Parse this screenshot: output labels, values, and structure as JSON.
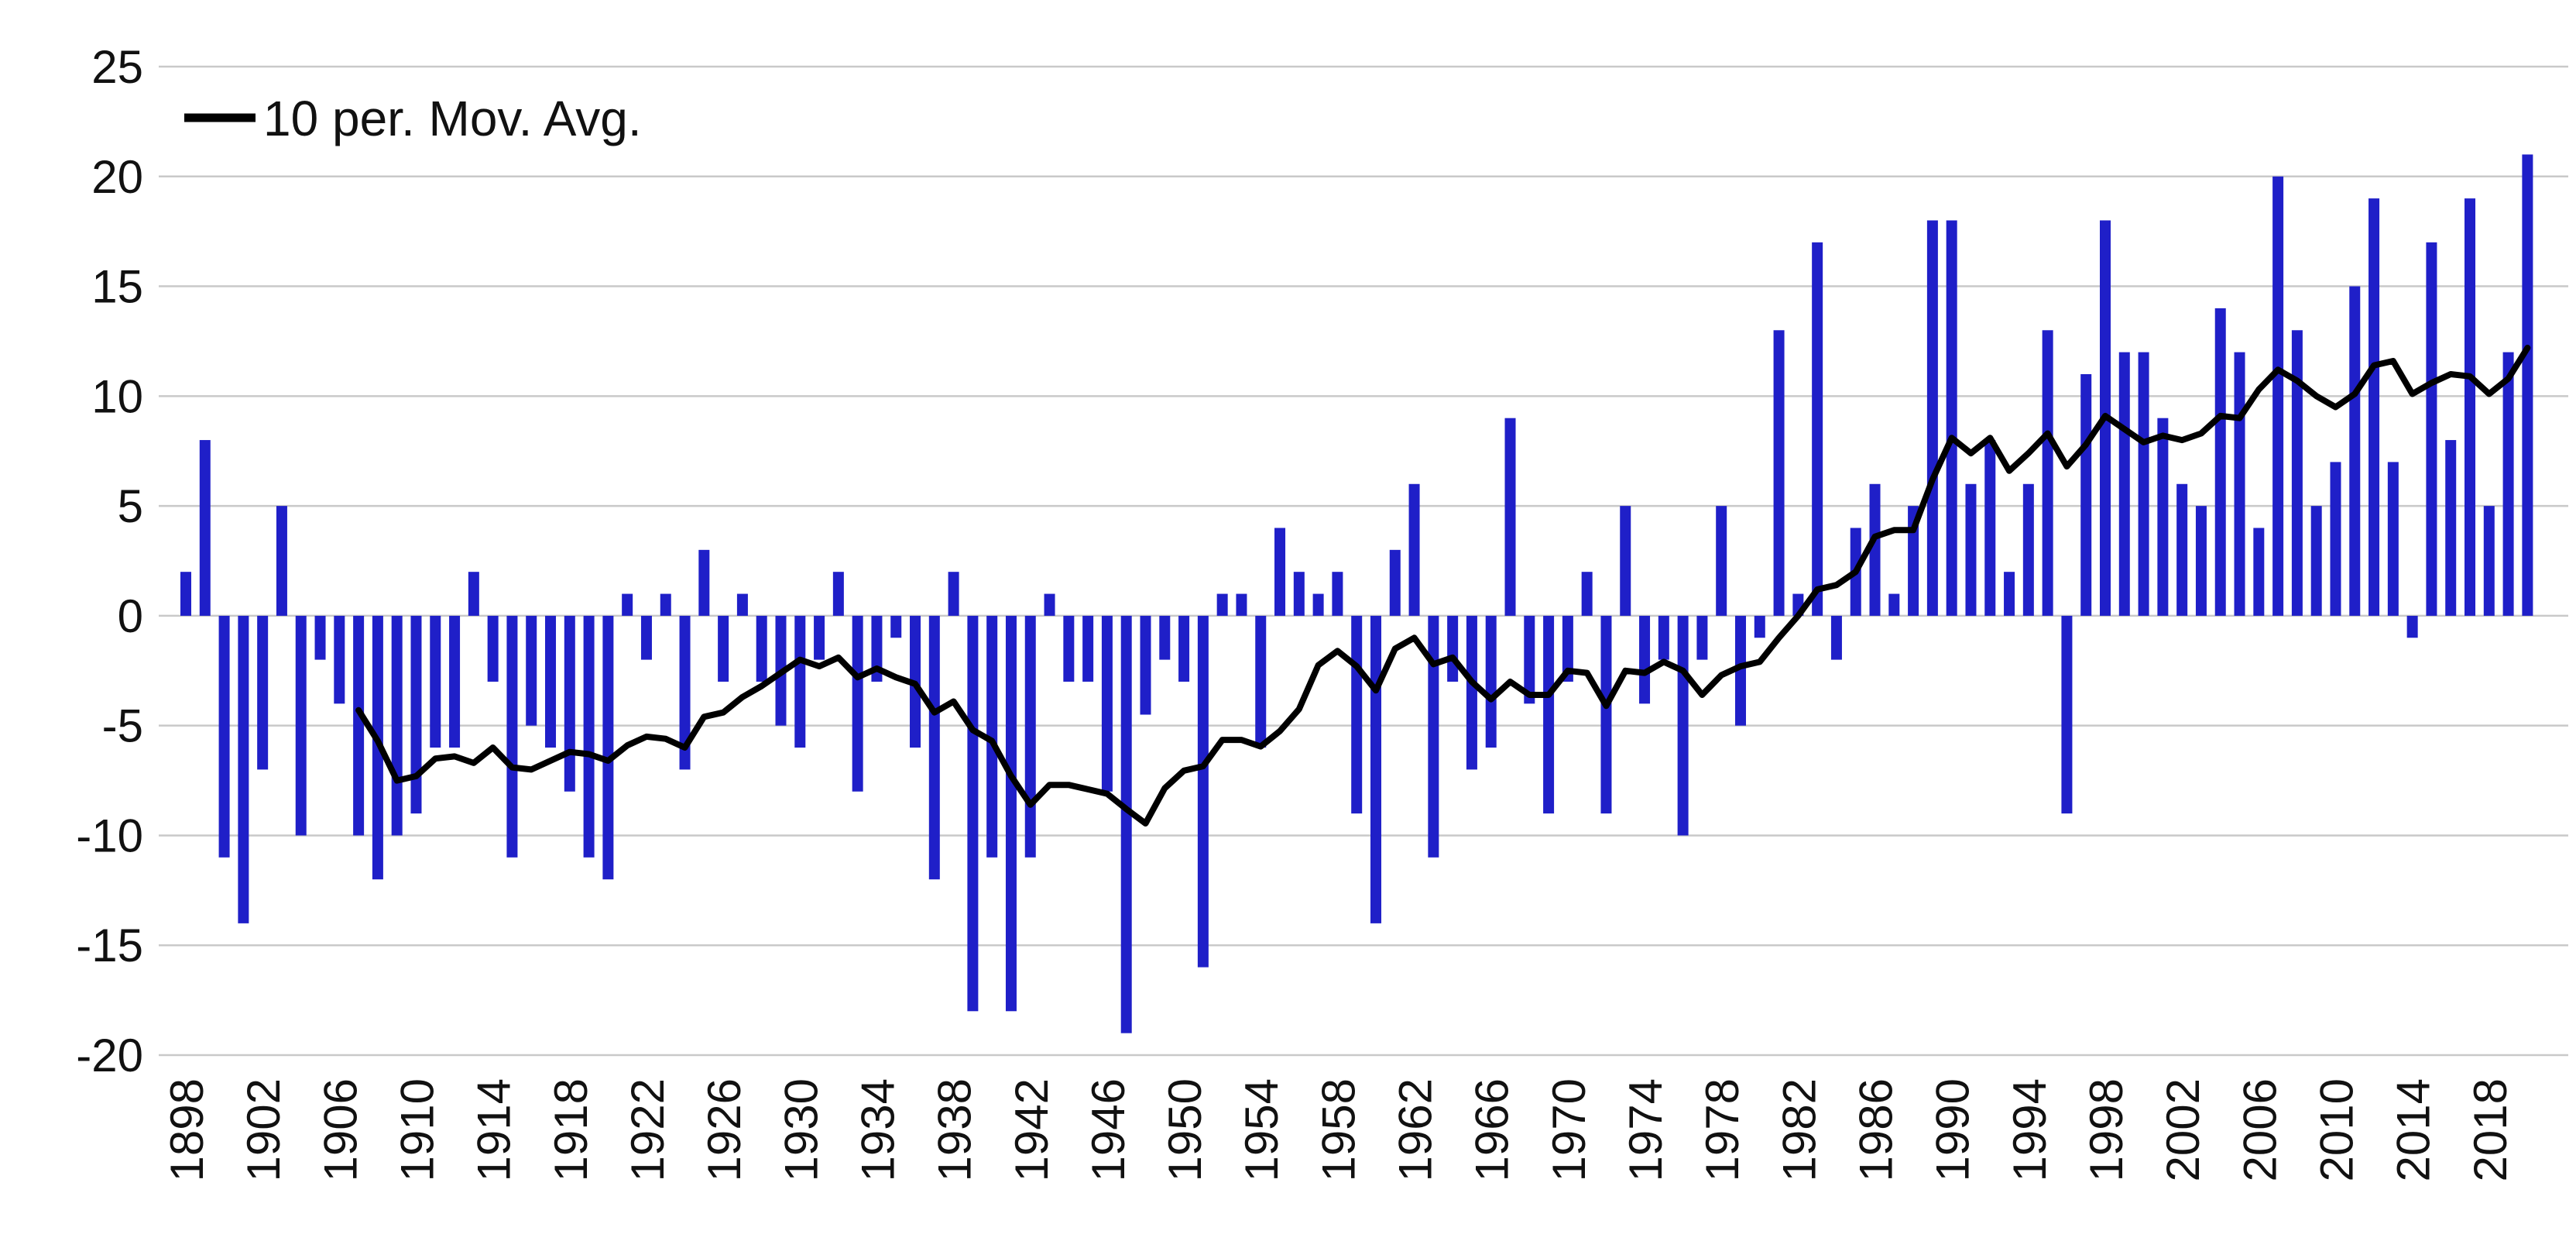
{
  "chart_data": {
    "type": "bar",
    "title": "",
    "xlabel": "",
    "ylabel": "",
    "ylim": [
      -20,
      25
    ],
    "grid": "horizontal",
    "legend": {
      "position": "top-left",
      "label": "10 per. Mov. Avg.",
      "line_color": "#000000"
    },
    "bar_color": "#1f1fc8",
    "gridline_color": "#c9c9c9",
    "start_year": 1898,
    "end_year": 2020,
    "values": [
      2,
      8,
      -11,
      -14,
      -7,
      5,
      -10,
      -2,
      -4,
      -10,
      -12,
      -10,
      -9,
      -6,
      -6,
      2,
      -3,
      -11,
      -5,
      -6,
      -8,
      -11,
      -12,
      1,
      -2,
      1,
      -7,
      3,
      -3,
      1,
      -3,
      -5,
      -6,
      -2,
      2,
      -8,
      -3,
      -1,
      -6,
      -12,
      2,
      -18,
      -11,
      -18,
      -11,
      1,
      -3,
      -3,
      -8,
      -19,
      -4.5,
      -2,
      -3,
      -16,
      1,
      1,
      -6,
      4,
      2,
      1,
      2,
      -9,
      -14,
      3,
      6,
      -11,
      -3,
      -7,
      -6,
      9,
      -4,
      -9,
      -3,
      2,
      -9,
      5,
      -4,
      -2,
      -10,
      -2,
      5,
      -5,
      -1,
      13,
      1,
      17,
      -2,
      4,
      6,
      1,
      5,
      18,
      18,
      6,
      8,
      2,
      6,
      13,
      -9,
      11,
      18,
      12,
      12,
      9,
      6,
      5,
      14,
      12,
      4,
      20,
      13,
      5,
      7,
      15,
      19,
      7,
      -1,
      17,
      8,
      19,
      5,
      12,
      21
    ],
    "y_ticks": [
      25,
      20,
      15,
      10,
      5,
      0,
      -5,
      -10,
      -15,
      -20
    ],
    "x_tick_labels": [
      "1898",
      "1902",
      "1906",
      "1910",
      "1914",
      "1918",
      "1922",
      "1926",
      "1930",
      "1934",
      "1938",
      "1942",
      "1946",
      "1950",
      "1954",
      "1958",
      "1962",
      "1966",
      "1970",
      "1974",
      "1978",
      "1982",
      "1986",
      "1990",
      "1994",
      "1998",
      "2002",
      "2006",
      "2010",
      "2014",
      "2018"
    ],
    "moving_average": {
      "period": 10,
      "mode": "trailing",
      "first_plotted_year": 1907,
      "line_color": "#000000"
    }
  }
}
